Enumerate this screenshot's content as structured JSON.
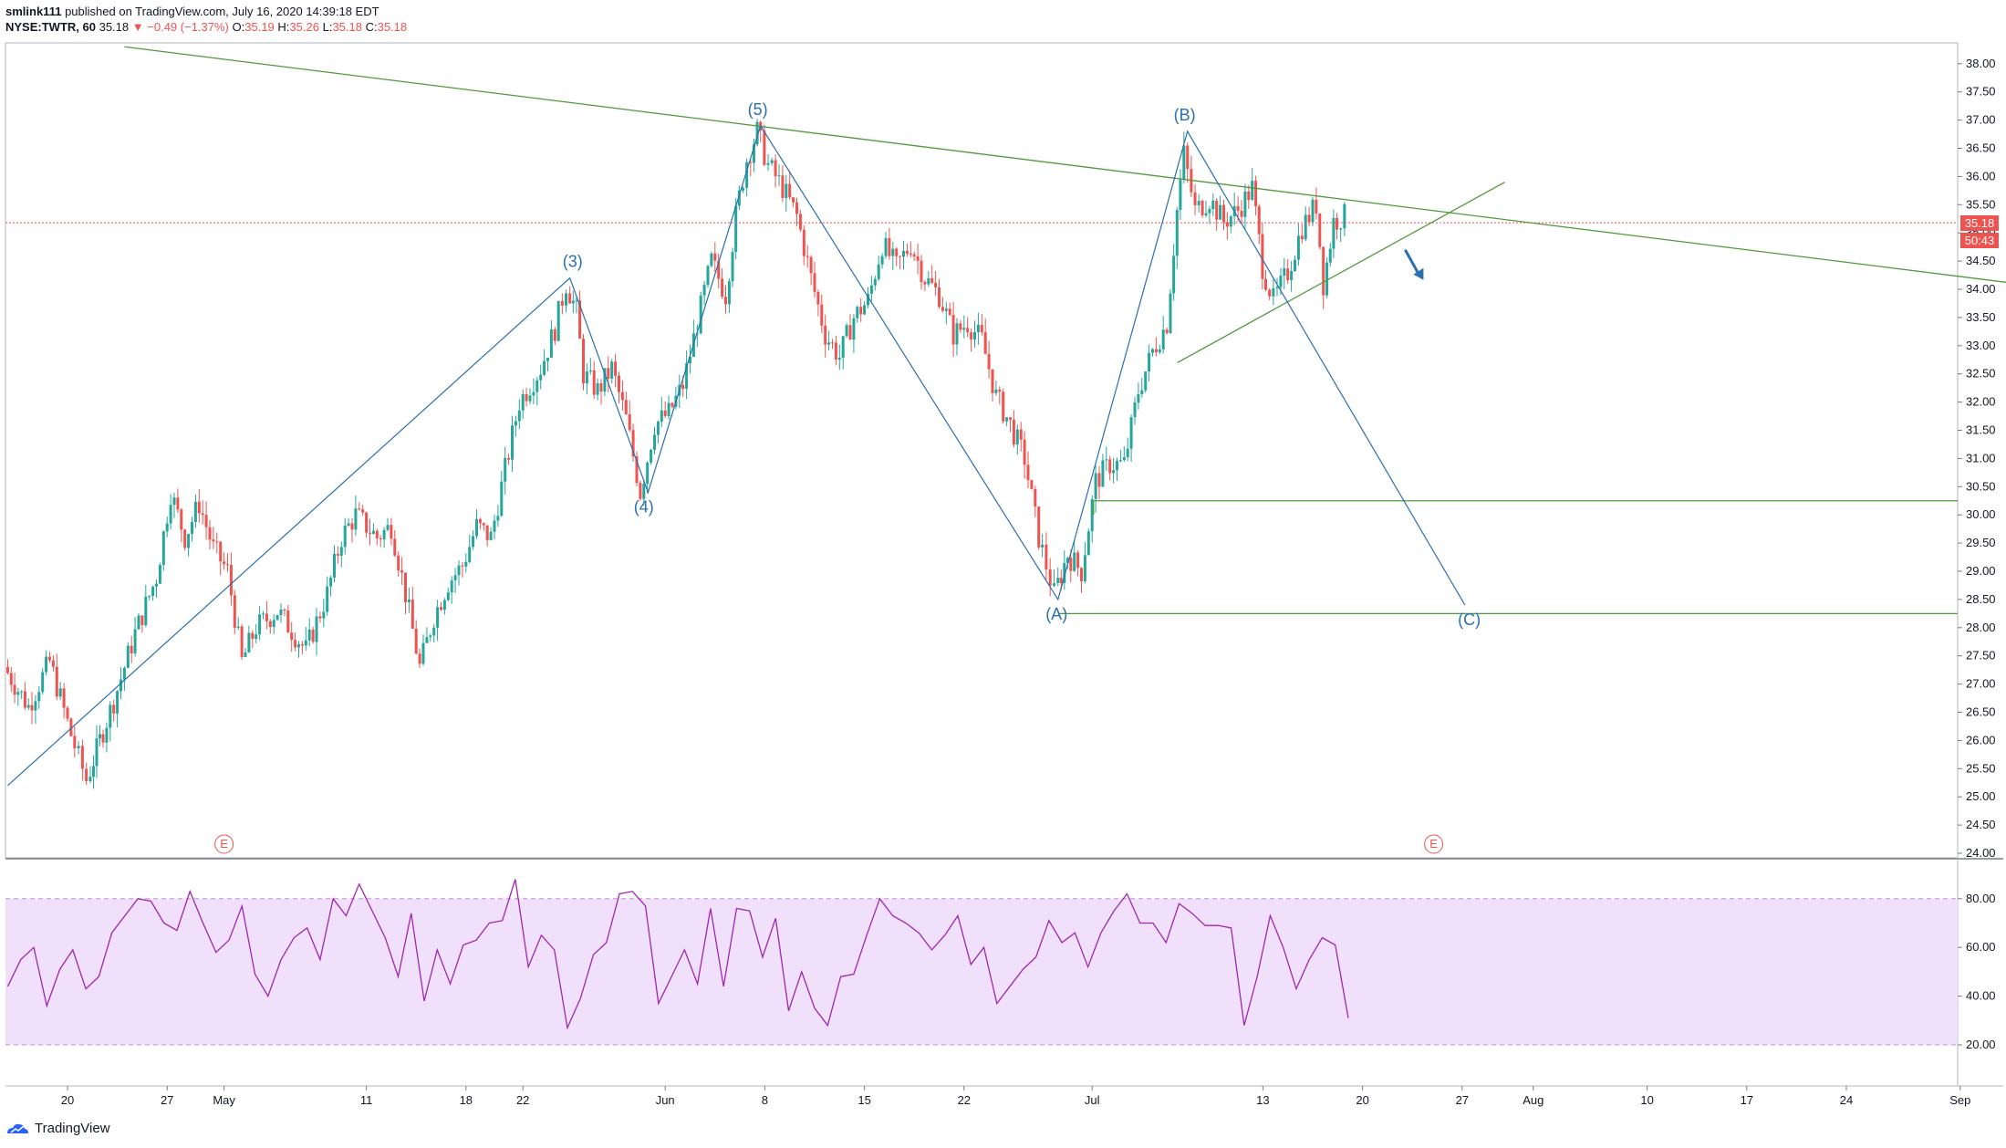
{
  "header": {
    "publisher": "smlink111",
    "published_text": "published on TradingView.com, July 16, 2020 14:39:18 EDT",
    "symbol": "NYSE:TWTR, 60",
    "last": "35.18",
    "change": "−0.49 (−1.37%)",
    "o_label": "O:",
    "o": "35.19",
    "h_label": "H:",
    "h": "35.26",
    "l_label": "L:",
    "l": "35.18",
    "c_label": "C:",
    "c": "35.18"
  },
  "price_tag": {
    "price": "35.18",
    "countdown": "50:43"
  },
  "footer": {
    "brand": "TradingView"
  },
  "colors": {
    "up": "#26a69a",
    "down": "#ef5350",
    "wave": "#2a6fb0",
    "trend": "#4e9a3a",
    "rsi": "#9c27b0",
    "rsi_band": "#f1e0fb"
  },
  "chart_data": {
    "type": "candlestick",
    "interval": "60",
    "price_axis": {
      "min": 24.0,
      "max": 38.0,
      "ticks": [
        "38.00",
        "37.50",
        "37.00",
        "36.50",
        "36.00",
        "35.50",
        "35.00",
        "34.50",
        "34.00",
        "33.50",
        "33.00",
        "32.50",
        "32.00",
        "31.50",
        "31.00",
        "30.50",
        "30.00",
        "29.50",
        "29.00",
        "28.50",
        "28.00",
        "27.50",
        "27.00",
        "26.50",
        "26.00",
        "25.50",
        "25.00",
        "24.50",
        "24.00"
      ]
    },
    "rsi_axis": {
      "ticks": [
        "80.00",
        "60.00",
        "40.00",
        "20.00"
      ],
      "band": [
        20,
        80
      ]
    },
    "time_axis": [
      {
        "label": "20",
        "t": 0.0
      },
      {
        "label": "27",
        "t": 7.0
      },
      {
        "label": "May",
        "t": 11.0
      },
      {
        "label": "11",
        "t": 21.0
      },
      {
        "label": "18",
        "t": 28.0
      },
      {
        "label": "22",
        "t": 32.0
      },
      {
        "label": "Jun",
        "t": 42.0
      },
      {
        "label": "8",
        "t": 49.0
      },
      {
        "label": "15",
        "t": 56.0
      },
      {
        "label": "22",
        "t": 63.0
      },
      {
        "label": "Jul",
        "t": 72.0
      },
      {
        "label": "13",
        "t": 84.0
      },
      {
        "label": "20",
        "t": 91.0
      },
      {
        "label": "27",
        "t": 98.0
      },
      {
        "label": "Aug",
        "t": 103.0
      },
      {
        "label": "10",
        "t": 111.0
      },
      {
        "label": "17",
        "t": 118.0
      },
      {
        "label": "24",
        "t": 125.0
      },
      {
        "label": "Sep",
        "t": 133.0
      }
    ],
    "waves": [
      {
        "label": "(3)",
        "t": 35.5,
        "price": 34.2
      },
      {
        "label": "(4)",
        "t": 40.5,
        "price": 30.4
      },
      {
        "label": "(5)",
        "t": 48.5,
        "price": 36.9
      },
      {
        "label": "(A)",
        "t": 69.5,
        "price": 28.5
      },
      {
        "label": "(B)",
        "t": 78.5,
        "price": 36.8
      },
      {
        "label": "(C)",
        "t": 98.5,
        "price": 28.4
      }
    ],
    "elliott_path": [
      [
        -4.2,
        25.2
      ],
      [
        35.3,
        34.2
      ],
      [
        40.8,
        30.4
      ],
      [
        48.7,
        36.9
      ],
      [
        69.6,
        28.5
      ],
      [
        78.7,
        36.8
      ],
      [
        98.2,
        28.4
      ]
    ],
    "trendlines": [
      {
        "from": [
          4.0,
          38.3
        ],
        "to": [
          137.0,
          34.1
        ]
      },
      {
        "from": [
          78.0,
          32.7
        ],
        "to": [
          101.0,
          35.9
        ]
      }
    ],
    "horizontal_levels": [
      30.25,
      28.25
    ],
    "current_price": 35.18,
    "earnings_markers": [
      {
        "label": "E",
        "t": 11.0
      },
      {
        "label": "E",
        "t": 96.0
      }
    ],
    "ohlc_anchors": [
      [
        -4.2,
        27.3
      ],
      [
        -2.5,
        26.6
      ],
      [
        -1.0,
        27.4
      ],
      [
        0.5,
        26.1
      ],
      [
        1.6,
        25.3
      ],
      [
        2.5,
        26.0
      ],
      [
        3.5,
        26.7
      ],
      [
        5.0,
        27.9
      ],
      [
        6.5,
        28.9
      ],
      [
        7.5,
        30.4
      ],
      [
        8.5,
        29.6
      ],
      [
        9.5,
        30.2
      ],
      [
        10.5,
        29.4
      ],
      [
        11.5,
        29.0
      ],
      [
        12.5,
        27.4
      ],
      [
        13.5,
        28.0
      ],
      [
        15.0,
        28.3
      ],
      [
        17.0,
        27.6
      ],
      [
        18.5,
        28.6
      ],
      [
        19.5,
        29.6
      ],
      [
        20.5,
        30.0
      ],
      [
        22.0,
        29.6
      ],
      [
        23.0,
        29.8
      ],
      [
        24.0,
        28.6
      ],
      [
        25.0,
        27.3
      ],
      [
        26.0,
        28.2
      ],
      [
        27.0,
        28.8
      ],
      [
        28.0,
        29.1
      ],
      [
        29.0,
        29.8
      ],
      [
        30.0,
        29.6
      ],
      [
        31.0,
        30.8
      ],
      [
        32.0,
        32.0
      ],
      [
        33.5,
        32.6
      ],
      [
        34.5,
        33.3
      ],
      [
        35.3,
        34.1
      ],
      [
        36.0,
        33.6
      ],
      [
        36.5,
        32.5
      ],
      [
        37.5,
        32.2
      ],
      [
        38.5,
        32.6
      ],
      [
        39.5,
        31.7
      ],
      [
        40.5,
        30.4
      ],
      [
        41.5,
        31.6
      ],
      [
        42.5,
        31.8
      ],
      [
        43.5,
        32.3
      ],
      [
        44.5,
        33.4
      ],
      [
        45.5,
        34.5
      ],
      [
        46.5,
        33.9
      ],
      [
        47.2,
        35.3
      ],
      [
        48.0,
        36.3
      ],
      [
        48.7,
        36.8
      ],
      [
        49.5,
        36.2
      ],
      [
        50.5,
        35.8
      ],
      [
        51.5,
        35.3
      ],
      [
        52.5,
        34.2
      ],
      [
        53.5,
        33.2
      ],
      [
        54.5,
        32.8
      ],
      [
        55.5,
        33.5
      ],
      [
        56.5,
        33.8
      ],
      [
        57.5,
        34.8
      ],
      [
        58.5,
        34.4
      ],
      [
        59.5,
        34.8
      ],
      [
        60.5,
        34.2
      ],
      [
        61.5,
        33.9
      ],
      [
        62.5,
        33.2
      ],
      [
        63.5,
        33.4
      ],
      [
        64.5,
        33.1
      ],
      [
        65.5,
        32.1
      ],
      [
        66.5,
        31.6
      ],
      [
        67.5,
        31.0
      ],
      [
        68.5,
        29.6
      ],
      [
        69.6,
        28.6
      ],
      [
        70.5,
        29.3
      ],
      [
        71.5,
        29.0
      ],
      [
        72.5,
        30.6
      ],
      [
        73.5,
        30.9
      ],
      [
        74.5,
        30.9
      ],
      [
        75.5,
        32.2
      ],
      [
        76.5,
        32.9
      ],
      [
        77.5,
        33.4
      ],
      [
        78.2,
        35.4
      ],
      [
        78.7,
        36.4
      ],
      [
        79.5,
        35.4
      ],
      [
        80.5,
        35.6
      ],
      [
        81.5,
        35.2
      ],
      [
        82.5,
        35.4
      ],
      [
        83.5,
        35.8
      ],
      [
        84.2,
        34.4
      ],
      [
        85.0,
        33.8
      ],
      [
        86.0,
        34.3
      ],
      [
        87.0,
        35.1
      ],
      [
        88.0,
        35.5
      ],
      [
        88.5,
        34.1
      ],
      [
        89.2,
        35.2
      ],
      [
        90.0,
        35.3
      ]
    ],
    "rsi_values": [
      44,
      55,
      60,
      36,
      51,
      59,
      43,
      48,
      66,
      73,
      80,
      79,
      70,
      67,
      83,
      70,
      58,
      63,
      77,
      49,
      40,
      55,
      64,
      68,
      55,
      80,
      73,
      86,
      75,
      64,
      48,
      74,
      38,
      59,
      45,
      61,
      63,
      70,
      71,
      88,
      52,
      65,
      59,
      27,
      39,
      57,
      62,
      82,
      83,
      77,
      37,
      48,
      59,
      45,
      76,
      44,
      76,
      75,
      56,
      72,
      34,
      50,
      35,
      28,
      48,
      49,
      65,
      80,
      73,
      70,
      66,
      59,
      65,
      73,
      53,
      60,
      37,
      44,
      51,
      56,
      71,
      62,
      66,
      52,
      66,
      75,
      82,
      70,
      70,
      62,
      78,
      74,
      69,
      69,
      68,
      28,
      48,
      73,
      60,
      43,
      55,
      64,
      61,
      31
    ]
  }
}
